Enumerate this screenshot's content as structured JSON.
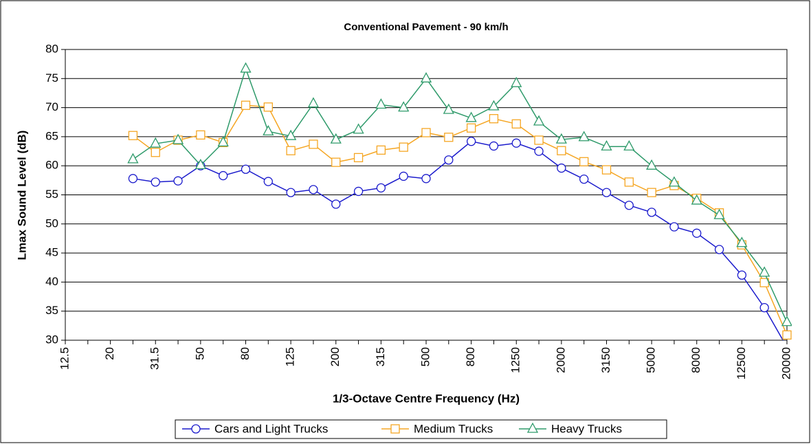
{
  "chart_data": {
    "type": "line",
    "title": "Conventional Pavement - 90 km/h",
    "x_label": "1/3-Octave Centre Frequency (Hz)",
    "y_label": "Lmax Sound Level (dB)",
    "categories": [
      "12.5",
      null,
      "20",
      null,
      "31.5",
      null,
      "50",
      null,
      "80",
      null,
      "125",
      null,
      "200",
      null,
      "315",
      null,
      "500",
      null,
      "800",
      null,
      "1250",
      null,
      "2000",
      null,
      "3150",
      null,
      "5000",
      null,
      "8000",
      null,
      "12500",
      null,
      "20000"
    ],
    "ylim": [
      30,
      80
    ],
    "yticks": [
      30,
      35,
      40,
      45,
      50,
      55,
      60,
      65,
      70,
      75,
      80
    ],
    "grid": true,
    "legend": "bottom",
    "series": [
      {
        "name": "Cars and Light Trucks",
        "color": "#1a1acc",
        "marker": "circle",
        "values": [
          null,
          null,
          null,
          57.8,
          57.2,
          57.4,
          60.0,
          58.3,
          59.4,
          57.3,
          55.4,
          55.9,
          53.4,
          55.6,
          56.2,
          58.2,
          57.8,
          61.0,
          64.2,
          63.4,
          63.9,
          62.5,
          59.6,
          57.7,
          55.4,
          53.2,
          52.0,
          49.5,
          48.4,
          45.6,
          41.2,
          35.6,
          28.8
        ]
      },
      {
        "name": "Medium Trucks",
        "color": "#f5a623",
        "marker": "square",
        "values": [
          null,
          null,
          null,
          65.2,
          62.3,
          64.4,
          65.3,
          64.0,
          70.4,
          70.1,
          62.6,
          63.7,
          60.6,
          61.4,
          62.7,
          63.2,
          65.7,
          64.9,
          66.5,
          68.1,
          67.2,
          64.4,
          62.6,
          60.7,
          59.3,
          57.2,
          55.4,
          56.6,
          54.4,
          51.9,
          46.4,
          39.9,
          30.9
        ]
      },
      {
        "name": "Heavy Trucks",
        "color": "#2e9a6a",
        "marker": "triangle",
        "values": [
          null,
          null,
          null,
          61.1,
          63.8,
          64.4,
          60.1,
          64.0,
          76.7,
          65.9,
          65.1,
          70.7,
          64.5,
          66.2,
          70.5,
          70.0,
          75.0,
          69.6,
          68.2,
          70.2,
          74.2,
          67.6,
          64.5,
          64.9,
          63.3,
          63.3,
          60.0,
          57.1,
          54.0,
          51.5,
          46.7,
          41.6,
          33.1
        ]
      }
    ]
  }
}
